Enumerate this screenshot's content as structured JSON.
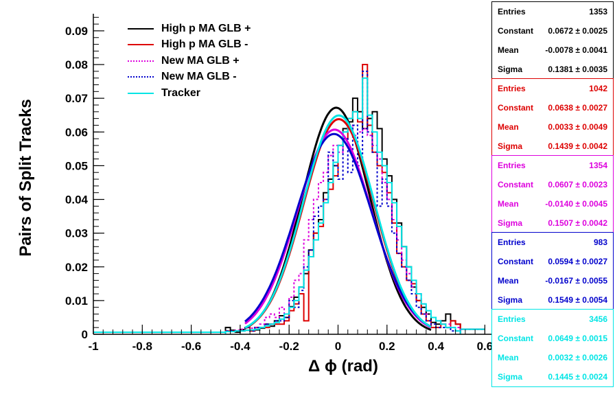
{
  "chart_data": {
    "type": "line",
    "title": "",
    "xlabel": "Δ ϕ (rad)",
    "ylabel": "Pairs of Split Tracks",
    "xlim": [
      -1,
      0.6
    ],
    "ylim": [
      0,
      0.095
    ],
    "x_ticks": [
      "-1",
      "-0.8",
      "-0.6",
      "-0.4",
      "-0.2",
      "0",
      "0.2",
      "0.4",
      "0.6"
    ],
    "y_ticks": [
      "0",
      "0.01",
      "0.02",
      "0.03",
      "0.04",
      "0.05",
      "0.06",
      "0.07",
      "0.08",
      "0.09"
    ],
    "legend_position": "top-left",
    "grid": false,
    "bin_width": 0.02,
    "series": [
      {
        "name": "High p MA GLB +",
        "color": "#000000",
        "style": "solid",
        "fit": {
          "constant": 0.0672,
          "mean": -0.0078,
          "sigma": 0.1381
        },
        "stats": {
          "Entries": "1353",
          "Constant": "0.0672 ± 0.0025",
          "Mean": "-0.0078 ± 0.0041",
          "Sigma": "0.1381 ± 0.0035"
        },
        "hist": [
          0.002,
          0.0012,
          0.0006,
          0.0014,
          0.0012,
          0.001,
          0.0013,
          0.0018,
          0.003,
          0.0024,
          0.004,
          0.0055,
          0.005,
          0.0082,
          0.011,
          0.014,
          0.018,
          0.025,
          0.03,
          0.034,
          0.042,
          0.046,
          0.05,
          0.056,
          0.061,
          0.063,
          0.07,
          0.066,
          0.061,
          0.064,
          0.066,
          0.061,
          0.052,
          0.047,
          0.04,
          0.033,
          0.026,
          0.02,
          0.014,
          0.01,
          0.008,
          0.006,
          0.0035,
          0.003,
          0.004,
          0.006,
          0.004,
          0.003
        ]
      },
      {
        "name": "High p MA GLB -",
        "color": "#dd0000",
        "style": "solid",
        "fit": {
          "constant": 0.0638,
          "mean": 0.0033,
          "sigma": 0.1439
        },
        "stats": {
          "Entries": "1042",
          "Constant": "0.0638 ± 0.0027",
          "Mean": "0.0033 ± 0.0049",
          "Sigma": "0.1439 ± 0.0042"
        },
        "hist": [
          0.001,
          0.001,
          0.001,
          0.001,
          0.002,
          0.001,
          0.002,
          0.002,
          0.002,
          0.003,
          0.003,
          0.003,
          0.004,
          0.007,
          0.009,
          0.012,
          0.004,
          0.023,
          0.03,
          0.032,
          0.04,
          0.043,
          0.047,
          0.056,
          0.058,
          0.064,
          0.066,
          0.063,
          0.08,
          0.062,
          0.054,
          0.05,
          0.048,
          0.042,
          0.033,
          0.024,
          0.02,
          0.016,
          0.015,
          0.01,
          0.006,
          0.004,
          0.002,
          0.002,
          0.003,
          0.002,
          0.004,
          0.003
        ]
      },
      {
        "name": "New MA GLB +",
        "color": "#dd00dd",
        "style": "dotted",
        "fit": {
          "constant": 0.0607,
          "mean": -0.014,
          "sigma": 0.1507
        },
        "stats": {
          "Entries": "1354",
          "Constant": "0.0607 ± 0.0023",
          "Mean": "-0.0140 ± 0.0045",
          "Sigma": "0.1507 ± 0.0042"
        },
        "hist": [
          0.001,
          0.001,
          0.0012,
          0.0015,
          0.002,
          0.0018,
          0.002,
          0.003,
          0.005,
          0.006,
          0.005,
          0.008,
          0.006,
          0.011,
          0.016,
          0.018,
          0.028,
          0.034,
          0.04,
          0.045,
          0.048,
          0.053,
          0.056,
          0.054,
          0.06,
          0.062,
          0.059,
          0.06,
          0.061,
          0.059,
          0.056,
          0.052,
          0.045,
          0.04,
          0.034,
          0.028,
          0.022,
          0.018,
          0.014,
          0.012,
          0.009,
          0.006,
          0.005,
          0.004,
          0.003,
          0.003,
          0.002,
          0.002
        ]
      },
      {
        "name": "New MA GLB -",
        "color": "#0000cc",
        "style": "dotted",
        "fit": {
          "constant": 0.0594,
          "mean": -0.0167,
          "sigma": 0.1549
        },
        "stats": {
          "Entries": "983",
          "Constant": "0.0594 ± 0.0027",
          "Mean": "-0.0167 ± 0.0055",
          "Sigma": "0.1549 ± 0.0054"
        },
        "hist": [
          0.001,
          0.001,
          0.001,
          0.001,
          0.002,
          0.001,
          0.002,
          0.002,
          0.003,
          0.003,
          0.004,
          0.004,
          0.005,
          0.01,
          0.008,
          0.013,
          0.02,
          0.025,
          0.035,
          0.038,
          0.04,
          0.054,
          0.05,
          0.046,
          0.058,
          0.048,
          0.062,
          0.05,
          0.078,
          0.06,
          0.054,
          0.038,
          0.046,
          0.038,
          0.03,
          0.024,
          0.02,
          0.016,
          0.012,
          0.008,
          0.006,
          0.004,
          0.003,
          0.002,
          0.002,
          0.002,
          0.001,
          0.001
        ]
      },
      {
        "name": "Tracker",
        "color": "#00e5e5",
        "style": "solid",
        "fit": {
          "constant": 0.0649,
          "mean": 0.0032,
          "sigma": 0.1445
        },
        "stats": {
          "Entries": "3456",
          "Constant": "0.0649 ± 0.0015",
          "Mean": "0.0032 ± 0.0026",
          "Sigma": "0.1445 ± 0.0024"
        },
        "hist": [
          0.0008,
          0.0008,
          0.001,
          0.001,
          0.0012,
          0.0013,
          0.0015,
          0.002,
          0.0025,
          0.003,
          0.0035,
          0.0045,
          0.006,
          0.008,
          0.01,
          0.014,
          0.019,
          0.023,
          0.028,
          0.033,
          0.039,
          0.045,
          0.051,
          0.056,
          0.06,
          0.064,
          0.066,
          0.064,
          0.076,
          0.065,
          0.06,
          0.054,
          0.05,
          0.045,
          0.039,
          0.032,
          0.026,
          0.02,
          0.016,
          0.012,
          0.009,
          0.007,
          0.005,
          0.004,
          0.003,
          0.002,
          0.002,
          0.001
        ]
      }
    ]
  }
}
